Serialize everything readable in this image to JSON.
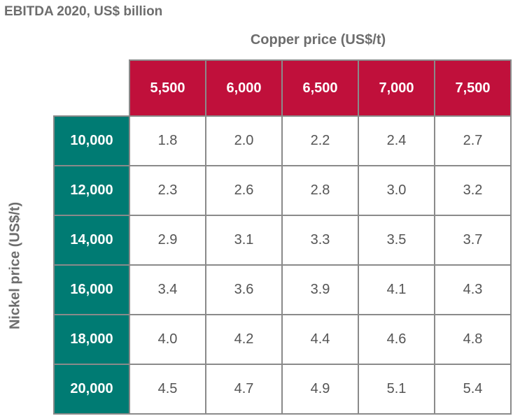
{
  "chart_data": {
    "type": "table",
    "title": "EBITDA 2020, US$ billion",
    "xlabel": "Copper price (US$/t)",
    "ylabel": "Nickel price (US$/t)",
    "columns": [
      "5,500",
      "6,000",
      "6,500",
      "7,000",
      "7,500"
    ],
    "rows": [
      "10,000",
      "12,000",
      "14,000",
      "16,000",
      "18,000",
      "20,000"
    ],
    "values": [
      [
        "1.8",
        "2.0",
        "2.2",
        "2.4",
        "2.7"
      ],
      [
        "2.3",
        "2.6",
        "2.8",
        "3.0",
        "3.2"
      ],
      [
        "2.9",
        "3.1",
        "3.3",
        "3.5",
        "3.7"
      ],
      [
        "3.4",
        "3.6",
        "3.9",
        "4.1",
        "4.3"
      ],
      [
        "4.0",
        "4.2",
        "4.4",
        "4.6",
        "4.8"
      ],
      [
        "4.5",
        "4.7",
        "4.9",
        "5.1",
        "5.4"
      ]
    ]
  },
  "colors": {
    "header_column_bg": "#c0103b",
    "header_row_bg": "#007b73",
    "grid_line": "#8a8a8a",
    "label_text": "#6d6d6d"
  }
}
